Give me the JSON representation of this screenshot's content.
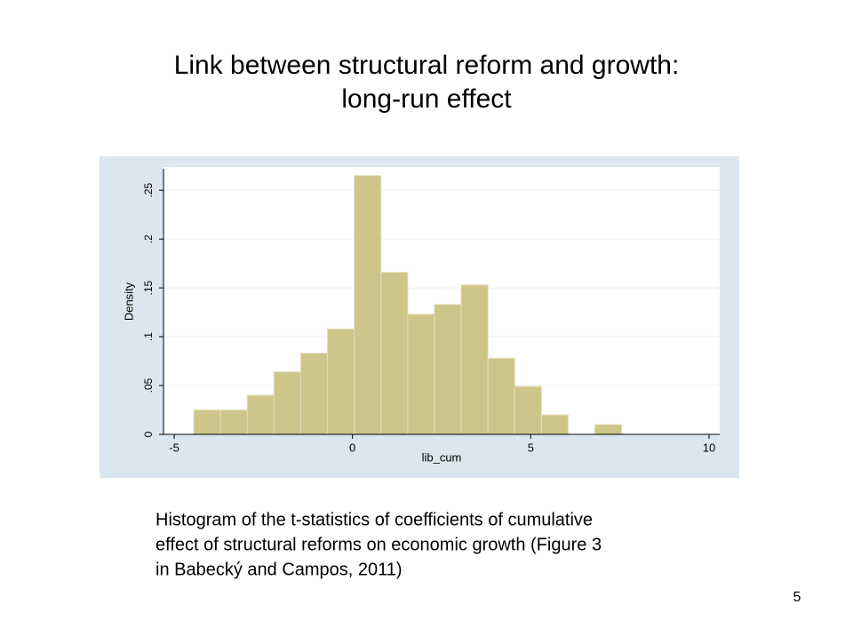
{
  "title_lines": [
    "Link between structural reform and growth:",
    "long-run effect"
  ],
  "chart_data": {
    "type": "histogram",
    "bins": [
      -4.45,
      -3.7,
      -2.95,
      -2.2,
      -1.45,
      -0.7,
      0.05,
      0.8,
      1.55,
      2.3,
      3.05,
      3.8,
      4.55,
      5.3,
      6.05,
      6.8,
      7.55
    ],
    "values": [
      0.025,
      0.025,
      0.04,
      0.064,
      0.083,
      0.108,
      0.265,
      0.166,
      0.123,
      0.133,
      0.153,
      0.078,
      0.049,
      0.02,
      0,
      0.01
    ],
    "color": "#cdc58a",
    "x_label": "lib_cum",
    "y_label": "Density",
    "xlim": [
      -5.3,
      10.3
    ],
    "xticks": [
      -5,
      0,
      5,
      10
    ],
    "ylim": [
      0,
      0.272
    ],
    "yticks": [
      0,
      {
        "value": 0.05,
        "label": ".05"
      },
      {
        "value": 0.1,
        "label": ".1"
      },
      {
        "value": 0.15,
        "label": ".15"
      },
      {
        "value": 0.2,
        "label": ".2"
      },
      {
        "value": 0.25,
        "label": ".25"
      }
    ],
    "grid": true
  },
  "caption_lines": [
    "Histogram of the t-statistics of coefficients of cumulative",
    "effect of structural reforms on economic growth (Figure 3",
    "in Babecký and Campos, 2011)"
  ],
  "page_number": "5"
}
